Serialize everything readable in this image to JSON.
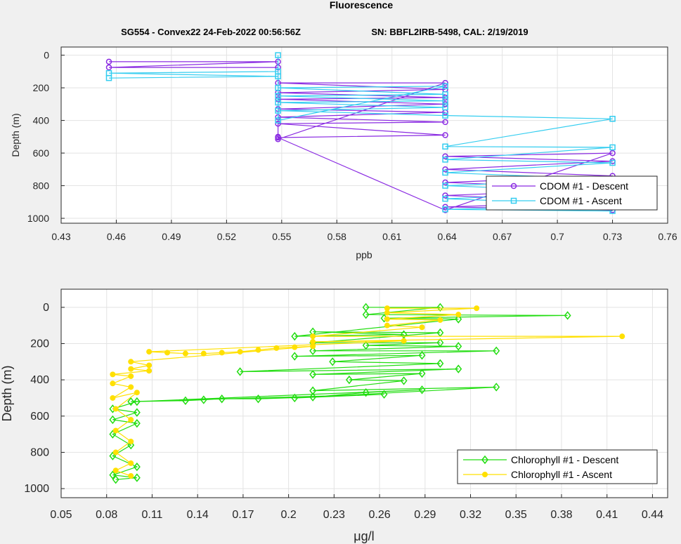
{
  "figure": {
    "title": "Fluorescence",
    "subtitle_left": "SG554 - Convex22 24-Feb-2022 00:56:56Z",
    "subtitle_right": "SN: BBFL2IRB-5498, CAL: 2/19/2019"
  },
  "colors": {
    "cdom_descent": "#8a2be2",
    "cdom_ascent": "#33cdf0",
    "chl_descent": "#22dd11",
    "chl_ascent": "#ffe000",
    "axes_bg": "#ffffff",
    "grid": "#e3e3e3"
  },
  "chart_data": [
    {
      "type": "line",
      "xlabel": "ppb",
      "ylabel": "Depth (m)",
      "xlim": [
        0.43,
        0.76
      ],
      "ylim": [
        1030,
        -50
      ],
      "y_reversed": true,
      "grid": true,
      "legend_placement": "bottom-right",
      "xticks": [
        "0.43",
        "0.46",
        "0.49",
        "0.52",
        "0.55",
        "0.58",
        "0.61",
        "0.64",
        "0.67",
        "0.7",
        "0.73",
        "0.76"
      ],
      "yticks": [
        "0",
        "200",
        "400",
        "600",
        "800",
        "1000"
      ],
      "series": [
        {
          "name": "CDOM #1 - Descent",
          "marker": "circle",
          "points": [
            [
              0.456,
              40
            ],
            [
              0.548,
              40
            ],
            [
              0.456,
              75
            ],
            [
              0.548,
              75
            ],
            [
              0.548,
              500
            ],
            [
              0.548,
              515
            ],
            [
              0.639,
              170
            ],
            [
              0.548,
              170
            ],
            [
              0.639,
              210
            ],
            [
              0.548,
              230
            ],
            [
              0.639,
              260
            ],
            [
              0.548,
              270
            ],
            [
              0.639,
              300
            ],
            [
              0.548,
              330
            ],
            [
              0.639,
              350
            ],
            [
              0.548,
              380
            ],
            [
              0.639,
              410
            ],
            [
              0.548,
              420
            ],
            [
              0.639,
              490
            ],
            [
              0.548,
              505
            ],
            [
              0.639,
              950
            ],
            [
              0.73,
              600
            ],
            [
              0.639,
              620
            ],
            [
              0.73,
              650
            ],
            [
              0.639,
              700
            ],
            [
              0.73,
              740
            ],
            [
              0.639,
              780
            ],
            [
              0.73,
              820
            ],
            [
              0.639,
              860
            ],
            [
              0.73,
              900
            ],
            [
              0.639,
              930
            ],
            [
              0.73,
              950
            ]
          ]
        },
        {
          "name": "CDOM #1 - Ascent",
          "marker": "square",
          "points": [
            [
              0.456,
              140
            ],
            [
              0.548,
              130
            ],
            [
              0.456,
              110
            ],
            [
              0.548,
              100
            ],
            [
              0.548,
              0
            ],
            [
              0.548,
              400
            ],
            [
              0.639,
              190
            ],
            [
              0.548,
              200
            ],
            [
              0.639,
              240
            ],
            [
              0.548,
              250
            ],
            [
              0.639,
              280
            ],
            [
              0.548,
              290
            ],
            [
              0.639,
              320
            ],
            [
              0.548,
              340
            ],
            [
              0.639,
              370
            ],
            [
              0.73,
              390
            ],
            [
              0.639,
              560
            ],
            [
              0.73,
              565
            ],
            [
              0.639,
              640
            ],
            [
              0.73,
              660
            ],
            [
              0.639,
              720
            ],
            [
              0.73,
              760
            ],
            [
              0.639,
              800
            ],
            [
              0.73,
              840
            ],
            [
              0.639,
              880
            ],
            [
              0.73,
              920
            ],
            [
              0.639,
              945
            ],
            [
              0.73,
              955
            ]
          ]
        }
      ]
    },
    {
      "type": "line",
      "xlabel": "μg/l",
      "ylabel": "Depth (m)",
      "xlim": [
        0.05,
        0.45
      ],
      "ylim": [
        1050,
        -100
      ],
      "y_reversed": true,
      "grid": true,
      "legend_placement": "bottom-right",
      "xticks": [
        "0.05",
        "0.08",
        "0.11",
        "0.14",
        "0.17",
        "0.2",
        "0.23",
        "0.26",
        "0.29",
        "0.32",
        "0.35",
        "0.38",
        "0.41",
        "0.44"
      ],
      "yticks": [
        "0",
        "200",
        "400",
        "600",
        "800",
        "1000"
      ],
      "series": [
        {
          "name": "Chlorophyll #1 - Descent",
          "marker": "diamond",
          "points": [
            [
              0.251,
              0
            ],
            [
              0.3,
              0
            ],
            [
              0.251,
              40
            ],
            [
              0.384,
              45
            ],
            [
              0.263,
              60
            ],
            [
              0.312,
              65
            ],
            [
              0.204,
              160
            ],
            [
              0.276,
              150
            ],
            [
              0.216,
              135
            ],
            [
              0.3,
              140
            ],
            [
              0.216,
              195
            ],
            [
              0.3,
              195
            ],
            [
              0.251,
              210
            ],
            [
              0.312,
              215
            ],
            [
              0.216,
              240
            ],
            [
              0.337,
              240
            ],
            [
              0.204,
              270
            ],
            [
              0.288,
              265
            ],
            [
              0.229,
              300
            ],
            [
              0.3,
              310
            ],
            [
              0.168,
              355
            ],
            [
              0.312,
              340
            ],
            [
              0.216,
              370
            ],
            [
              0.288,
              365
            ],
            [
              0.24,
              400
            ],
            [
              0.276,
              405
            ],
            [
              0.216,
              460
            ],
            [
              0.337,
              440
            ],
            [
              0.204,
              500
            ],
            [
              0.263,
              480
            ],
            [
              0.096,
              520
            ],
            [
              0.132,
              515
            ],
            [
              0.144,
              510
            ],
            [
              0.156,
              505
            ],
            [
              0.18,
              505
            ],
            [
              0.216,
              495
            ],
            [
              0.251,
              470
            ],
            [
              0.288,
              455
            ],
            [
              0.1,
              520
            ],
            [
              0.084,
              560
            ],
            [
              0.1,
              580
            ],
            [
              0.084,
              620
            ],
            [
              0.1,
              640
            ],
            [
              0.084,
              700
            ],
            [
              0.096,
              760
            ],
            [
              0.084,
              820
            ],
            [
              0.1,
              880
            ],
            [
              0.084,
              925
            ],
            [
              0.1,
              940
            ],
            [
              0.086,
              950
            ]
          ]
        },
        {
          "name": "Chlorophyll #1 - Ascent",
          "marker": "circle",
          "points": [
            [
              0.265,
              5
            ],
            [
              0.324,
              5
            ],
            [
              0.265,
              30
            ],
            [
              0.312,
              40
            ],
            [
              0.265,
              65
            ],
            [
              0.3,
              70
            ],
            [
              0.265,
              100
            ],
            [
              0.288,
              110
            ],
            [
              0.216,
              160
            ],
            [
              0.42,
              160
            ],
            [
              0.216,
              190
            ],
            [
              0.276,
              185
            ],
            [
              0.108,
              245
            ],
            [
              0.12,
              250
            ],
            [
              0.132,
              255
            ],
            [
              0.144,
              255
            ],
            [
              0.156,
              250
            ],
            [
              0.168,
              245
            ],
            [
              0.18,
              235
            ],
            [
              0.192,
              225
            ],
            [
              0.204,
              220
            ],
            [
              0.216,
              215
            ],
            [
              0.096,
              300
            ],
            [
              0.108,
              320
            ],
            [
              0.096,
              340
            ],
            [
              0.108,
              350
            ],
            [
              0.084,
              370
            ],
            [
              0.096,
              380
            ],
            [
              0.084,
              420
            ],
            [
              0.096,
              440
            ],
            [
              0.084,
              500
            ],
            [
              0.1,
              470
            ],
            [
              0.086,
              560
            ],
            [
              0.096,
              620
            ],
            [
              0.086,
              680
            ],
            [
              0.096,
              740
            ],
            [
              0.086,
              800
            ],
            [
              0.096,
              860
            ],
            [
              0.086,
              900
            ],
            [
              0.096,
              930
            ]
          ]
        }
      ]
    }
  ]
}
